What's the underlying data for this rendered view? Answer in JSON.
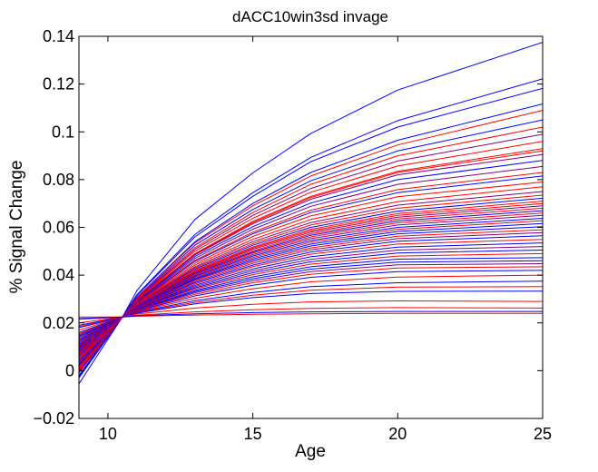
{
  "chart_data": {
    "type": "line",
    "title": "dACC10win3sd invage",
    "xlabel": "Age",
    "ylabel": "% Signal Change",
    "xlim": [
      9,
      25
    ],
    "ylim": [
      -0.02,
      0.14
    ],
    "x_ticks": [
      10,
      15,
      20,
      25
    ],
    "y_ticks": [
      -0.02,
      0,
      0.02,
      0.04,
      0.06,
      0.08,
      0.1,
      0.12,
      0.14
    ],
    "x_tick_labels": [
      "10",
      "15",
      "20",
      "25"
    ],
    "y_tick_labels": [
      "−0.02",
      "0",
      "0.02",
      "0.04",
      "0.06",
      "0.08",
      "0.1",
      "0.12",
      "0.14"
    ],
    "grid": false,
    "legend": false,
    "x": [
      9,
      10.5,
      11,
      13,
      15,
      17,
      20,
      25
    ],
    "pivot": {
      "x": 10.5,
      "y": 0.0225
    },
    "series_colors": {
      "blue": "#0000ff",
      "red": "#ff0000",
      "purple": "#800080"
    },
    "series": [
      {
        "color": "blue",
        "values": [
          -0.0055,
          0.0225,
          0.0335,
          0.0633,
          0.0828,
          0.0993,
          0.1175,
          0.1375
        ]
      },
      {
        "color": "blue",
        "values": [
          -0.003,
          0.0225,
          0.0318,
          0.057,
          0.0745,
          0.0893,
          0.1047,
          0.1222
        ]
      },
      {
        "color": "blue",
        "values": [
          -0.0025,
          0.0225,
          0.0315,
          0.056,
          0.073,
          0.0875,
          0.102,
          0.1182
        ]
      },
      {
        "color": "blue",
        "values": [
          -0.002,
          0.0225,
          0.0308,
          0.054,
          0.07,
          0.083,
          0.0965,
          0.1117
        ]
      },
      {
        "color": "red",
        "values": [
          -0.001,
          0.0225,
          0.0306,
          0.0535,
          0.069,
          0.0815,
          0.0945,
          0.109
        ]
      },
      {
        "color": "blue",
        "values": [
          -0.0005,
          0.0225,
          0.0302,
          0.0525,
          0.0675,
          0.0795,
          0.092,
          0.105
        ]
      },
      {
        "color": "red",
        "values": [
          0.0,
          0.0225,
          0.03,
          0.0515,
          0.0662,
          0.078,
          0.09,
          0.102
        ]
      },
      {
        "color": "purple",
        "values": [
          0.0005,
          0.0225,
          0.0298,
          0.0508,
          0.065,
          0.0763,
          0.0878,
          0.099
        ]
      },
      {
        "color": "red",
        "values": [
          0.001,
          0.0225,
          0.0296,
          0.05,
          0.0638,
          0.0747,
          0.0857,
          0.096
        ]
      },
      {
        "color": "red",
        "values": [
          0.0015,
          0.0225,
          0.0294,
          0.049,
          0.0625,
          0.073,
          0.0835,
          0.093
        ]
      },
      {
        "color": "red",
        "values": [
          0.002,
          0.0225,
          0.0293,
          0.0488,
          0.062,
          0.0725,
          0.083,
          0.092
        ]
      },
      {
        "color": "purple",
        "values": [
          0.002,
          0.0225,
          0.0292,
          0.0485,
          0.0615,
          0.0718,
          0.082,
          0.0905
        ]
      },
      {
        "color": "blue",
        "values": [
          0.0025,
          0.0225,
          0.029,
          0.0478,
          0.0603,
          0.0702,
          0.08,
          0.088
        ]
      },
      {
        "color": "purple",
        "values": [
          0.003,
          0.0225,
          0.0288,
          0.047,
          0.0592,
          0.0688,
          0.078,
          0.0855
        ]
      },
      {
        "color": "red",
        "values": [
          0.0035,
          0.0225,
          0.0286,
          0.0462,
          0.058,
          0.0672,
          0.0758,
          0.083
        ]
      },
      {
        "color": "blue",
        "values": [
          0.004,
          0.0225,
          0.0285,
          0.0458,
          0.0573,
          0.0662,
          0.0745,
          0.0815
        ]
      },
      {
        "color": "red",
        "values": [
          0.0045,
          0.0225,
          0.0283,
          0.045,
          0.0562,
          0.0648,
          0.0728,
          0.079
        ]
      },
      {
        "color": "red",
        "values": [
          0.005,
          0.0225,
          0.0281,
          0.0442,
          0.055,
          0.0633,
          0.0708,
          0.077
        ]
      },
      {
        "color": "purple",
        "values": [
          0.0055,
          0.0225,
          0.0279,
          0.0435,
          0.054,
          0.062,
          0.0693,
          0.075
        ]
      },
      {
        "color": "red",
        "values": [
          0.006,
          0.0225,
          0.0278,
          0.043,
          0.0532,
          0.061,
          0.068,
          0.0735
        ]
      },
      {
        "color": "blue",
        "values": [
          0.0065,
          0.0225,
          0.0277,
          0.0425,
          0.0525,
          0.06,
          0.0668,
          0.0722
        ]
      },
      {
        "color": "red",
        "values": [
          0.007,
          0.0225,
          0.0276,
          0.042,
          0.0518,
          0.0592,
          0.0658,
          0.071
        ]
      },
      {
        "color": "red",
        "values": [
          0.0072,
          0.0225,
          0.0275,
          0.0417,
          0.0513,
          0.0586,
          0.065,
          0.07
        ]
      },
      {
        "color": "purple",
        "values": [
          0.0075,
          0.0225,
          0.0274,
          0.0413,
          0.0508,
          0.058,
          0.0643,
          0.069
        ]
      },
      {
        "color": "red",
        "values": [
          0.0078,
          0.0225,
          0.0273,
          0.041,
          0.0502,
          0.0573,
          0.0635,
          0.068
        ]
      },
      {
        "color": "blue",
        "values": [
          0.008,
          0.0225,
          0.0272,
          0.0406,
          0.0497,
          0.0567,
          0.0627,
          0.067
        ]
      },
      {
        "color": "red",
        "values": [
          0.0083,
          0.0225,
          0.0271,
          0.0402,
          0.0492,
          0.056,
          0.0619,
          0.066
        ]
      },
      {
        "color": "purple",
        "values": [
          0.0086,
          0.0225,
          0.027,
          0.0398,
          0.0486,
          0.0553,
          0.061,
          0.065
        ]
      },
      {
        "color": "blue",
        "values": [
          0.009,
          0.0225,
          0.0269,
          0.0394,
          0.048,
          0.0545,
          0.06,
          0.0638
        ]
      },
      {
        "color": "red",
        "values": [
          0.0093,
          0.0225,
          0.0268,
          0.039,
          0.0474,
          0.0538,
          0.0592,
          0.0628
        ]
      },
      {
        "color": "blue",
        "values": [
          0.0097,
          0.0225,
          0.0267,
          0.0386,
          0.0468,
          0.053,
          0.0583,
          0.0616
        ]
      },
      {
        "color": "blue",
        "values": [
          0.01,
          0.0225,
          0.0266,
          0.0382,
          0.0462,
          0.0522,
          0.0573,
          0.0603
        ]
      },
      {
        "color": "red",
        "values": [
          0.0103,
          0.0225,
          0.0265,
          0.0378,
          0.0456,
          0.0514,
          0.0563,
          0.059
        ]
      },
      {
        "color": "purple",
        "values": [
          0.0107,
          0.0225,
          0.0264,
          0.0373,
          0.0449,
          0.0506,
          0.0553,
          0.0578
        ]
      },
      {
        "color": "blue",
        "values": [
          0.011,
          0.0225,
          0.0263,
          0.0368,
          0.0442,
          0.0497,
          0.0542,
          0.0565
        ]
      },
      {
        "color": "red",
        "values": [
          0.0115,
          0.0225,
          0.0262,
          0.0363,
          0.0435,
          0.0488,
          0.053,
          0.055
        ]
      },
      {
        "color": "blue",
        "values": [
          0.012,
          0.0225,
          0.026,
          0.0357,
          0.0426,
          0.0477,
          0.0517,
          0.0535
        ]
      },
      {
        "color": "purple",
        "values": [
          0.0125,
          0.0225,
          0.0259,
          0.0352,
          0.0418,
          0.0466,
          0.0505,
          0.052
        ]
      },
      {
        "color": "blue",
        "values": [
          0.013,
          0.0225,
          0.0258,
          0.0347,
          0.041,
          0.0456,
          0.0493,
          0.0505
        ]
      },
      {
        "color": "red",
        "values": [
          0.0135,
          0.0225,
          0.0257,
          0.0342,
          0.0402,
          0.0446,
          0.048,
          0.049
        ]
      },
      {
        "color": "blue",
        "values": [
          0.014,
          0.0225,
          0.0255,
          0.0336,
          0.0393,
          0.0435,
          0.0467,
          0.0473
        ]
      },
      {
        "color": "blue",
        "values": [
          0.0145,
          0.0225,
          0.0254,
          0.0331,
          0.0385,
          0.0425,
          0.0455,
          0.046
        ]
      },
      {
        "color": "purple",
        "values": [
          0.015,
          0.0225,
          0.0253,
          0.0326,
          0.0377,
          0.0415,
          0.0443,
          0.0448
        ]
      },
      {
        "color": "red",
        "values": [
          0.0155,
          0.0225,
          0.0252,
          0.032,
          0.0368,
          0.0404,
          0.043,
          0.0435
        ]
      },
      {
        "color": "blue",
        "values": [
          0.016,
          0.0225,
          0.025,
          0.0313,
          0.0358,
          0.0391,
          0.0415,
          0.042
        ]
      },
      {
        "color": "red",
        "values": [
          0.017,
          0.0225,
          0.0248,
          0.0303,
          0.0343,
          0.0372,
          0.0392,
          0.04
        ]
      },
      {
        "color": "blue",
        "values": [
          0.018,
          0.0225,
          0.0245,
          0.0293,
          0.0327,
          0.0352,
          0.0368,
          0.0375
        ]
      },
      {
        "color": "red",
        "values": [
          0.0185,
          0.0225,
          0.0243,
          0.0286,
          0.0316,
          0.0337,
          0.035,
          0.0352
        ]
      },
      {
        "color": "blue",
        "values": [
          0.019,
          0.0225,
          0.0241,
          0.028,
          0.0306,
          0.0323,
          0.0332,
          0.0333
        ]
      },
      {
        "color": "red",
        "values": [
          0.02,
          0.0225,
          0.0237,
          0.0262,
          0.0278,
          0.0288,
          0.0292,
          0.029
        ]
      },
      {
        "color": "red",
        "values": [
          0.0215,
          0.0225,
          0.0232,
          0.0246,
          0.0255,
          0.0261,
          0.0264,
          0.0262
        ]
      },
      {
        "color": "red",
        "values": [
          0.0225,
          0.0225,
          0.0228,
          0.0233,
          0.0236,
          0.0238,
          0.024,
          0.024
        ]
      },
      {
        "color": "blue",
        "values": [
          0.0218,
          0.0225,
          0.023,
          0.0238,
          0.0243,
          0.0246,
          0.0248,
          0.0248
        ]
      }
    ]
  }
}
